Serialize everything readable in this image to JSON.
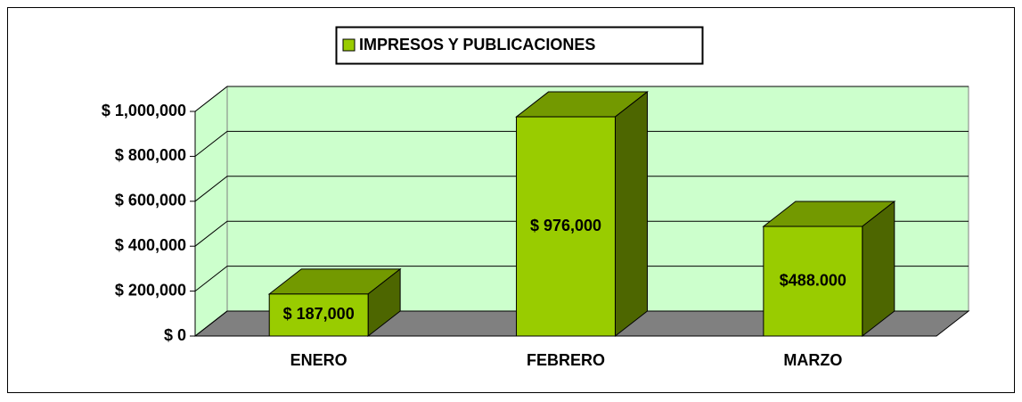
{
  "chart_data": {
    "type": "bar3d",
    "categories": [
      "ENERO",
      "FEBRERO",
      "MARZO"
    ],
    "series": [
      {
        "name": "IMPRESOS Y PUBLICACIONES",
        "color": "#99cc00",
        "values": [
          187000,
          976000,
          488000
        ],
        "value_labels": [
          "$ 187,000",
          "$ 976,000",
          "$488.000"
        ]
      }
    ],
    "ylim": [
      0,
      1000000
    ],
    "yticks": [
      {
        "value": 0,
        "label": "$ 0"
      },
      {
        "value": 200000,
        "label": "$ 200,000"
      },
      {
        "value": 400000,
        "label": "$ 400,000"
      },
      {
        "value": 600000,
        "label": "$ 600,000"
      },
      {
        "value": 800000,
        "label": "$ 800,000"
      },
      {
        "value": 1000000,
        "label": "$ 1,000,000"
      }
    ],
    "grid": true,
    "legend": "top"
  }
}
